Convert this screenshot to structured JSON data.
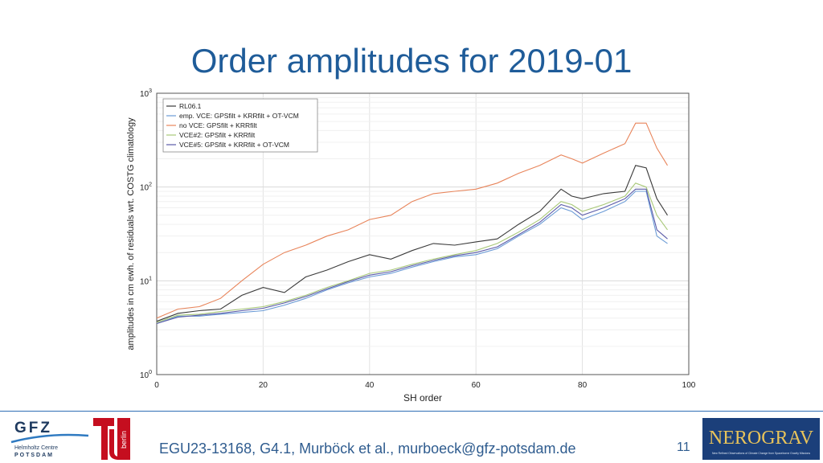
{
  "title": "Order amplitudes for 2019-01",
  "footer": {
    "citation": "EGU23-13168, G4.1, Murböck et al., murboeck@gfz-potsdam.de",
    "page": "11"
  },
  "logos": {
    "gfz": {
      "main": "GFZ",
      "line1": "Helmholtz Centre",
      "line2": "POTSDAM"
    },
    "tu": {
      "text": "berlin",
      "color": "#c50e1f"
    },
    "nerograv": {
      "text": "NEROGRAV",
      "tagline": "New Refined Observations of Climate Change from Spaceborne Gravity Missions",
      "bg": "#1b3f7a"
    }
  },
  "chart_data": {
    "type": "line",
    "xlabel": "SH order",
    "ylabel": "amplitudes in cm ewh. of residuals wrt. COSTG climatology",
    "xlim": [
      0,
      100
    ],
    "ylim": [
      1,
      1000
    ],
    "yscale": "log",
    "xticks": [
      0,
      20,
      40,
      60,
      80,
      100
    ],
    "yticks": [
      1,
      10,
      100,
      1000
    ],
    "ytick_labels": [
      {
        "base": "10",
        "exp": "0"
      },
      {
        "base": "10",
        "exp": "1"
      },
      {
        "base": "10",
        "exp": "2"
      },
      {
        "base": "10",
        "exp": "3"
      }
    ],
    "grid": true,
    "legend_position": "top-left",
    "series": [
      {
        "name": "RL06.1",
        "color": "#3a3a3a",
        "x": [
          0,
          4,
          8,
          12,
          16,
          20,
          24,
          28,
          32,
          36,
          40,
          44,
          48,
          52,
          56,
          60,
          64,
          68,
          72,
          76,
          78,
          80,
          84,
          88,
          90,
          92,
          94,
          96
        ],
        "y": [
          3.7,
          4.5,
          4.8,
          5.0,
          7.0,
          8.5,
          7.5,
          11,
          13,
          16,
          19,
          17,
          21,
          25,
          24,
          26,
          28,
          40,
          55,
          95,
          80,
          75,
          85,
          90,
          170,
          160,
          75,
          50
        ]
      },
      {
        "name": "emp. VCE: GPSfilt + KRRfilt + OT-VCM",
        "color": "#6b9bd6",
        "x": [
          0,
          4,
          8,
          12,
          16,
          20,
          24,
          28,
          32,
          36,
          40,
          44,
          48,
          52,
          56,
          60,
          64,
          68,
          72,
          76,
          78,
          80,
          84,
          88,
          90,
          92,
          94,
          96
        ],
        "y": [
          3.5,
          4.2,
          4.2,
          4.4,
          4.6,
          4.8,
          5.5,
          6.5,
          8,
          9.5,
          11,
          12,
          14,
          16,
          18,
          19,
          22,
          30,
          40,
          60,
          55,
          45,
          55,
          70,
          90,
          90,
          30,
          25
        ]
      },
      {
        "name": "no VCE: GPSfilt + KRRfilt",
        "color": "#e8845a",
        "x": [
          0,
          4,
          8,
          12,
          16,
          20,
          24,
          28,
          32,
          36,
          40,
          44,
          48,
          52,
          56,
          60,
          64,
          68,
          72,
          76,
          78,
          80,
          84,
          88,
          90,
          92,
          94,
          96
        ],
        "y": [
          4.0,
          5.0,
          5.3,
          6.5,
          10,
          15,
          20,
          24,
          30,
          35,
          45,
          50,
          70,
          85,
          90,
          95,
          110,
          140,
          170,
          220,
          200,
          180,
          230,
          290,
          480,
          480,
          260,
          170
        ]
      },
      {
        "name": "VCE#2: GPSfilt + KRRfilt",
        "color": "#a8c878",
        "x": [
          0,
          4,
          8,
          12,
          16,
          20,
          24,
          28,
          32,
          36,
          40,
          44,
          48,
          52,
          56,
          60,
          64,
          68,
          72,
          76,
          78,
          80,
          84,
          88,
          90,
          92,
          94,
          96
        ],
        "y": [
          3.6,
          4.3,
          4.4,
          4.7,
          5.0,
          5.3,
          6.0,
          7.0,
          8.5,
          10,
          12,
          13,
          15,
          17,
          19,
          21,
          25,
          33,
          45,
          70,
          65,
          55,
          65,
          80,
          110,
          100,
          50,
          35
        ]
      },
      {
        "name": "VCE#5: GPSfilt + KRRfilt + OT-VCM",
        "color": "#5a5aa8",
        "x": [
          0,
          4,
          8,
          12,
          16,
          20,
          24,
          28,
          32,
          36,
          40,
          44,
          48,
          52,
          56,
          60,
          64,
          68,
          72,
          76,
          78,
          80,
          84,
          88,
          90,
          92,
          94,
          96
        ],
        "y": [
          3.5,
          4.1,
          4.3,
          4.5,
          4.8,
          5.1,
          5.8,
          6.8,
          8.2,
          9.8,
          11.5,
          12.5,
          14.5,
          16.5,
          18.5,
          20,
          23,
          31,
          42,
          65,
          60,
          50,
          60,
          75,
          95,
          95,
          35,
          28
        ]
      }
    ]
  }
}
